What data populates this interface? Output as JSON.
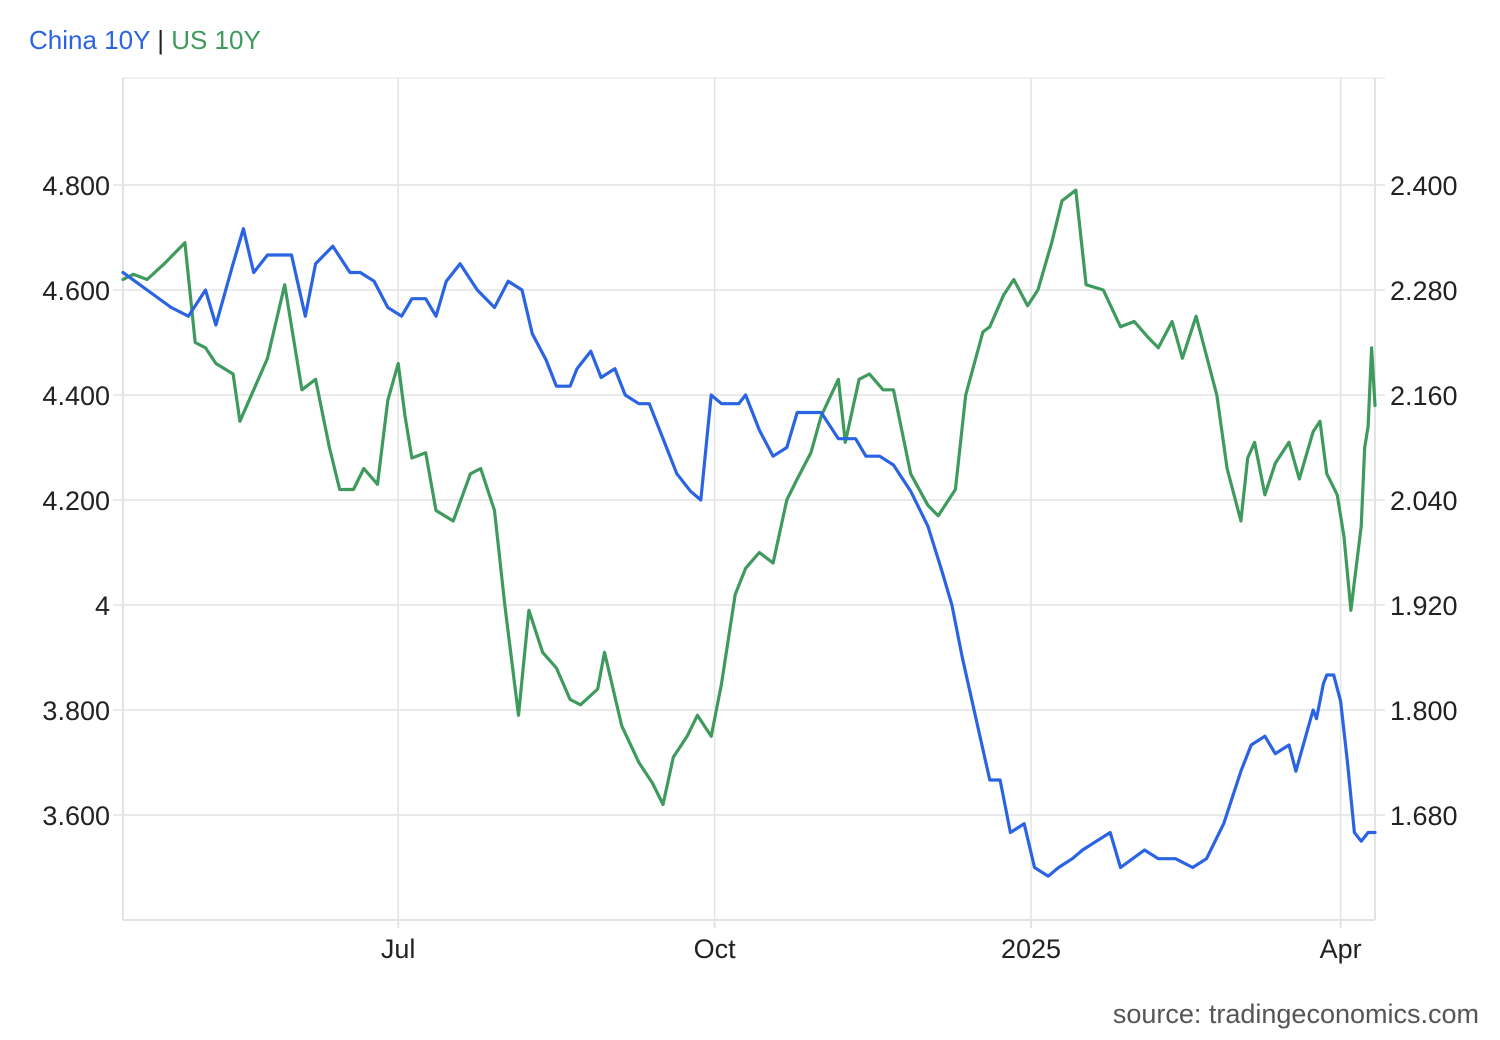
{
  "legend": {
    "china": "China 10Y",
    "separator": "|",
    "us": "US 10Y"
  },
  "source": "source: tradingeconomics.com",
  "colors": {
    "china": "#2b64e3",
    "us": "#3f9a5d",
    "grid": "#e3e3e3",
    "text": "#222222",
    "source": "#555555"
  },
  "chart_data": {
    "type": "line",
    "title": "",
    "legend_position": "top-left",
    "grid": true,
    "xlim": [
      "2024-04-12",
      "2025-04-11"
    ],
    "x_ticks": [
      {
        "label": "Jul",
        "date": "2024-07-01"
      },
      {
        "label": "Oct",
        "date": "2024-10-01"
      },
      {
        "label": "2025",
        "date": "2025-01-01"
      },
      {
        "label": "Apr",
        "date": "2025-04-01"
      }
    ],
    "y_left": {
      "ticks": [
        3.6,
        3.8,
        4.0,
        4.2,
        4.4,
        4.6,
        4.8
      ],
      "tick_labels": [
        "3.600",
        "3.800",
        "4",
        "4.200",
        "4.400",
        "4.600",
        "4.800"
      ],
      "lim": [
        3.4,
        5.0
      ]
    },
    "y_right": {
      "ticks": [
        1.68,
        1.8,
        1.92,
        2.04,
        2.16,
        2.28,
        2.4
      ],
      "tick_labels": [
        "1.680",
        "1.800",
        "1.920",
        "2.040",
        "2.160",
        "2.280",
        "2.400"
      ],
      "lim": [
        1.6,
        2.52
      ]
    },
    "series": [
      {
        "name": "China 10Y",
        "axis": "right",
        "data": [
          [
            "2024-04-12",
            2.3
          ],
          [
            "2024-04-19",
            2.28
          ],
          [
            "2024-04-26",
            2.26
          ],
          [
            "2024-05-01",
            2.25
          ],
          [
            "2024-05-06",
            2.28
          ],
          [
            "2024-05-09",
            2.24
          ],
          [
            "2024-05-14",
            2.31
          ],
          [
            "2024-05-17",
            2.35
          ],
          [
            "2024-05-20",
            2.3
          ],
          [
            "2024-05-24",
            2.32
          ],
          [
            "2024-05-31",
            2.32
          ],
          [
            "2024-06-04",
            2.25
          ],
          [
            "2024-06-07",
            2.31
          ],
          [
            "2024-06-12",
            2.33
          ],
          [
            "2024-06-17",
            2.3
          ],
          [
            "2024-06-20",
            2.3
          ],
          [
            "2024-06-24",
            2.29
          ],
          [
            "2024-06-28",
            2.26
          ],
          [
            "2024-07-02",
            2.25
          ],
          [
            "2024-07-05",
            2.27
          ],
          [
            "2024-07-09",
            2.27
          ],
          [
            "2024-07-12",
            2.25
          ],
          [
            "2024-07-15",
            2.29
          ],
          [
            "2024-07-19",
            2.31
          ],
          [
            "2024-07-24",
            2.28
          ],
          [
            "2024-07-29",
            2.26
          ],
          [
            "2024-08-02",
            2.29
          ],
          [
            "2024-08-06",
            2.28
          ],
          [
            "2024-08-09",
            2.23
          ],
          [
            "2024-08-13",
            2.2
          ],
          [
            "2024-08-16",
            2.17
          ],
          [
            "2024-08-20",
            2.17
          ],
          [
            "2024-08-22",
            2.19
          ],
          [
            "2024-08-26",
            2.21
          ],
          [
            "2024-08-29",
            2.18
          ],
          [
            "2024-09-02",
            2.19
          ],
          [
            "2024-09-05",
            2.16
          ],
          [
            "2024-09-09",
            2.15
          ],
          [
            "2024-09-12",
            2.15
          ],
          [
            "2024-09-17",
            2.1
          ],
          [
            "2024-09-20",
            2.07
          ],
          [
            "2024-09-24",
            2.05
          ],
          [
            "2024-09-27",
            2.04
          ],
          [
            "2024-09-30",
            2.16
          ],
          [
            "2024-10-03",
            2.15
          ],
          [
            "2024-10-08",
            2.15
          ],
          [
            "2024-10-10",
            2.16
          ],
          [
            "2024-10-14",
            2.12
          ],
          [
            "2024-10-18",
            2.09
          ],
          [
            "2024-10-22",
            2.1
          ],
          [
            "2024-10-25",
            2.14
          ],
          [
            "2024-10-29",
            2.14
          ],
          [
            "2024-11-01",
            2.14
          ],
          [
            "2024-11-06",
            2.11
          ],
          [
            "2024-11-11",
            2.11
          ],
          [
            "2024-11-14",
            2.09
          ],
          [
            "2024-11-18",
            2.09
          ],
          [
            "2024-11-22",
            2.08
          ],
          [
            "2024-11-27",
            2.05
          ],
          [
            "2024-12-02",
            2.01
          ],
          [
            "2024-12-06",
            1.96
          ],
          [
            "2024-12-09",
            1.92
          ],
          [
            "2024-12-12",
            1.86
          ],
          [
            "2024-12-16",
            1.79
          ],
          [
            "2024-12-20",
            1.72
          ],
          [
            "2024-12-23",
            1.72
          ],
          [
            "2024-12-26",
            1.66
          ],
          [
            "2024-12-30",
            1.67
          ],
          [
            "2025-01-02",
            1.62
          ],
          [
            "2025-01-06",
            1.61
          ],
          [
            "2025-01-09",
            1.62
          ],
          [
            "2025-01-13",
            1.63
          ],
          [
            "2025-01-16",
            1.64
          ],
          [
            "2025-01-20",
            1.65
          ],
          [
            "2025-01-24",
            1.66
          ],
          [
            "2025-01-27",
            1.62
          ],
          [
            "2025-02-03",
            1.64
          ],
          [
            "2025-02-07",
            1.63
          ],
          [
            "2025-02-12",
            1.63
          ],
          [
            "2025-02-17",
            1.62
          ],
          [
            "2025-02-21",
            1.63
          ],
          [
            "2025-02-26",
            1.67
          ],
          [
            "2025-03-03",
            1.73
          ],
          [
            "2025-03-06",
            1.76
          ],
          [
            "2025-03-10",
            1.77
          ],
          [
            "2025-03-13",
            1.75
          ],
          [
            "2025-03-17",
            1.76
          ],
          [
            "2025-03-19",
            1.73
          ],
          [
            "2025-03-24",
            1.8
          ],
          [
            "2025-03-25",
            1.79
          ],
          [
            "2025-03-27",
            1.83
          ],
          [
            "2025-03-28",
            1.84
          ],
          [
            "2025-03-30",
            1.84
          ],
          [
            "2025-04-01",
            1.81
          ],
          [
            "2025-04-03",
            1.74
          ],
          [
            "2025-04-05",
            1.66
          ],
          [
            "2025-04-07",
            1.65
          ],
          [
            "2025-04-09",
            1.66
          ],
          [
            "2025-04-11",
            1.66
          ]
        ]
      },
      {
        "name": "US 10Y",
        "axis": "left",
        "data": [
          [
            "2024-04-12",
            4.62
          ],
          [
            "2024-04-15",
            4.63
          ],
          [
            "2024-04-19",
            4.62
          ],
          [
            "2024-04-24",
            4.65
          ],
          [
            "2024-04-30",
            4.69
          ],
          [
            "2024-05-03",
            4.5
          ],
          [
            "2024-05-06",
            4.49
          ],
          [
            "2024-05-09",
            4.46
          ],
          [
            "2024-05-14",
            4.44
          ],
          [
            "2024-05-16",
            4.35
          ],
          [
            "2024-05-20",
            4.41
          ],
          [
            "2024-05-24",
            4.47
          ],
          [
            "2024-05-29",
            4.61
          ],
          [
            "2024-06-03",
            4.41
          ],
          [
            "2024-06-07",
            4.43
          ],
          [
            "2024-06-11",
            4.3
          ],
          [
            "2024-06-14",
            4.22
          ],
          [
            "2024-06-18",
            4.22
          ],
          [
            "2024-06-21",
            4.26
          ],
          [
            "2024-06-25",
            4.23
          ],
          [
            "2024-06-28",
            4.39
          ],
          [
            "2024-07-01",
            4.46
          ],
          [
            "2024-07-03",
            4.36
          ],
          [
            "2024-07-05",
            4.28
          ],
          [
            "2024-07-09",
            4.29
          ],
          [
            "2024-07-12",
            4.18
          ],
          [
            "2024-07-17",
            4.16
          ],
          [
            "2024-07-22",
            4.25
          ],
          [
            "2024-07-25",
            4.26
          ],
          [
            "2024-07-29",
            4.18
          ],
          [
            "2024-08-01",
            4.0
          ],
          [
            "2024-08-05",
            3.79
          ],
          [
            "2024-08-08",
            3.99
          ],
          [
            "2024-08-12",
            3.91
          ],
          [
            "2024-08-16",
            3.88
          ],
          [
            "2024-08-20",
            3.82
          ],
          [
            "2024-08-23",
            3.81
          ],
          [
            "2024-08-28",
            3.84
          ],
          [
            "2024-08-30",
            3.91
          ],
          [
            "2024-09-04",
            3.77
          ],
          [
            "2024-09-09",
            3.7
          ],
          [
            "2024-09-13",
            3.66
          ],
          [
            "2024-09-16",
            3.62
          ],
          [
            "2024-09-19",
            3.71
          ],
          [
            "2024-09-23",
            3.75
          ],
          [
            "2024-09-26",
            3.79
          ],
          [
            "2024-09-30",
            3.75
          ],
          [
            "2024-10-03",
            3.85
          ],
          [
            "2024-10-07",
            4.02
          ],
          [
            "2024-10-10",
            4.07
          ],
          [
            "2024-10-14",
            4.1
          ],
          [
            "2024-10-18",
            4.08
          ],
          [
            "2024-10-22",
            4.2
          ],
          [
            "2024-10-25",
            4.24
          ],
          [
            "2024-10-29",
            4.29
          ],
          [
            "2024-11-01",
            4.36
          ],
          [
            "2024-11-06",
            4.43
          ],
          [
            "2024-11-08",
            4.31
          ],
          [
            "2024-11-12",
            4.43
          ],
          [
            "2024-11-15",
            4.44
          ],
          [
            "2024-11-19",
            4.41
          ],
          [
            "2024-11-22",
            4.41
          ],
          [
            "2024-11-27",
            4.25
          ],
          [
            "2024-12-02",
            4.19
          ],
          [
            "2024-12-05",
            4.17
          ],
          [
            "2024-12-10",
            4.22
          ],
          [
            "2024-12-13",
            4.4
          ],
          [
            "2024-12-18",
            4.52
          ],
          [
            "2024-12-20",
            4.53
          ],
          [
            "2024-12-24",
            4.59
          ],
          [
            "2024-12-27",
            4.62
          ],
          [
            "2024-12-31",
            4.57
          ],
          [
            "2025-01-03",
            4.6
          ],
          [
            "2025-01-07",
            4.69
          ],
          [
            "2025-01-10",
            4.77
          ],
          [
            "2025-01-14",
            4.79
          ],
          [
            "2025-01-17",
            4.61
          ],
          [
            "2025-01-22",
            4.6
          ],
          [
            "2025-01-27",
            4.53
          ],
          [
            "2025-01-31",
            4.54
          ],
          [
            "2025-02-04",
            4.51
          ],
          [
            "2025-02-07",
            4.49
          ],
          [
            "2025-02-11",
            4.54
          ],
          [
            "2025-02-14",
            4.47
          ],
          [
            "2025-02-18",
            4.55
          ],
          [
            "2025-02-20",
            4.5
          ],
          [
            "2025-02-24",
            4.4
          ],
          [
            "2025-02-27",
            4.26
          ],
          [
            "2025-03-03",
            4.16
          ],
          [
            "2025-03-05",
            4.28
          ],
          [
            "2025-03-07",
            4.31
          ],
          [
            "2025-03-10",
            4.21
          ],
          [
            "2025-03-13",
            4.27
          ],
          [
            "2025-03-17",
            4.31
          ],
          [
            "2025-03-20",
            4.24
          ],
          [
            "2025-03-24",
            4.33
          ],
          [
            "2025-03-26",
            4.35
          ],
          [
            "2025-03-28",
            4.25
          ],
          [
            "2025-03-31",
            4.21
          ],
          [
            "2025-04-02",
            4.13
          ],
          [
            "2025-04-04",
            3.99
          ],
          [
            "2025-04-07",
            4.15
          ],
          [
            "2025-04-08",
            4.3
          ],
          [
            "2025-04-09",
            4.34
          ],
          [
            "2025-04-10",
            4.49
          ],
          [
            "2025-04-11",
            4.38
          ]
        ]
      }
    ]
  }
}
